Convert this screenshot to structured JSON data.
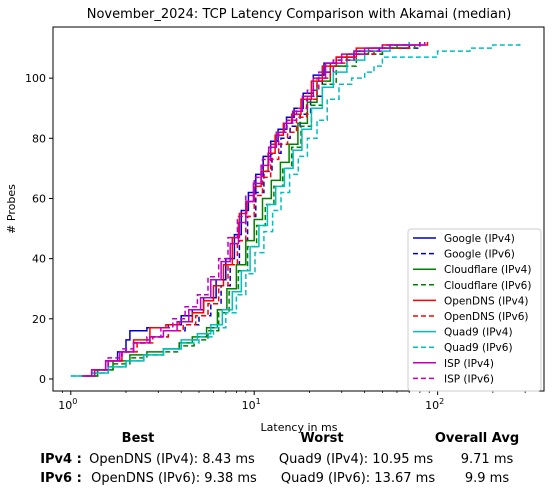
{
  "chart_data": {
    "type": "line",
    "title": "November_2024: TCP Latency Comparison with Akamai (median)",
    "xlabel": "Latency in ms",
    "ylabel": "# Probes",
    "xscale": "log",
    "xlim": [
      0.8,
      380
    ],
    "ylim": [
      -4,
      117
    ],
    "xticks": [
      {
        "value": 1,
        "label": "10^0"
      },
      {
        "value": 10,
        "label": "10^1"
      },
      {
        "value": 100,
        "label": "10^2"
      }
    ],
    "yticks": [
      0,
      20,
      40,
      60,
      80,
      100
    ],
    "grid": false,
    "legend_position": "bottom-right",
    "series": [
      {
        "name": "Google (IPv4)",
        "color": "#0000cc",
        "dash": "solid",
        "x": [
          1.15,
          1.3,
          1.55,
          1.8,
          2.0,
          2.1,
          2.6,
          3.4,
          4.0,
          4.6,
          5.3,
          6.2,
          7.0,
          7.8,
          8.5,
          9.3,
          10.2,
          11.2,
          12.3,
          13.5,
          15.0,
          16.5,
          18.5,
          21,
          24,
          28,
          35,
          48,
          70
        ],
        "y": [
          1,
          3,
          6,
          9,
          13,
          16,
          17,
          18,
          21,
          23,
          27,
          33,
          40,
          48,
          56,
          62,
          68,
          74,
          79,
          83,
          87,
          90,
          95,
          101,
          105,
          107,
          109,
          110,
          112
        ]
      },
      {
        "name": "Google (IPv6)",
        "color": "#0000cc",
        "dash": "dashed",
        "x": [
          1.2,
          1.35,
          1.6,
          1.9,
          2.2,
          2.7,
          3.4,
          4.2,
          5.0,
          5.8,
          6.6,
          7.4,
          8.3,
          9.2,
          10.2,
          11.3,
          12.5,
          14.0,
          15.7,
          17.8,
          20.3,
          23.5,
          27,
          35,
          50,
          80
        ],
        "y": [
          1,
          3,
          6,
          9,
          12,
          14,
          16,
          18,
          21,
          25,
          31,
          38,
          46,
          54,
          62,
          69,
          75,
          80,
          84,
          88,
          94,
          102,
          106,
          108,
          110,
          112
        ]
      },
      {
        "name": "Cloudflare (IPv4)",
        "color": "#008000",
        "dash": "solid",
        "x": [
          1.2,
          1.4,
          1.7,
          2.1,
          2.6,
          3.2,
          3.9,
          4.6,
          5.5,
          6.3,
          7.1,
          8.0,
          9.0,
          10.0,
          11.1,
          12.4,
          13.9,
          15.5,
          17.3,
          19.5,
          22,
          26,
          32,
          42,
          60
        ],
        "y": [
          1,
          3,
          6,
          8,
          9,
          10,
          12,
          14,
          17,
          23,
          30,
          38,
          46,
          53,
          60,
          66,
          72,
          78,
          85,
          92,
          99,
          104,
          108,
          110,
          111
        ]
      },
      {
        "name": "Cloudflare (IPv6)",
        "color": "#008000",
        "dash": "dashed",
        "x": [
          1.2,
          1.4,
          1.7,
          2.1,
          2.6,
          3.2,
          3.9,
          4.7,
          5.6,
          6.4,
          7.3,
          8.2,
          9.2,
          10.3,
          11.5,
          12.8,
          14.3,
          16.0,
          18.0,
          20.5,
          23.5,
          28,
          36,
          50,
          75
        ],
        "y": [
          1,
          3,
          5,
          7,
          8,
          9,
          11,
          13,
          16,
          22,
          29,
          36,
          44,
          51,
          58,
          64,
          70,
          77,
          84,
          91,
          98,
          104,
          108,
          110,
          112
        ]
      },
      {
        "name": "OpenDNS (IPv4)",
        "color": "#ff0000",
        "dash": "solid",
        "x": [
          1.2,
          1.35,
          1.6,
          1.9,
          2.2,
          2.7,
          3.3,
          3.9,
          4.6,
          5.3,
          6.0,
          6.8,
          7.6,
          8.3,
          9.1,
          10.0,
          10.9,
          11.9,
          13.0,
          14.4,
          16.0,
          18.0,
          20.5,
          23.5,
          28,
          36,
          50,
          88
        ],
        "y": [
          1,
          3,
          6,
          9,
          13,
          17,
          18,
          19,
          22,
          26,
          31,
          38,
          47,
          55,
          59,
          64,
          69,
          75,
          81,
          85,
          88,
          93,
          99,
          104,
          107,
          110,
          111,
          112
        ]
      },
      {
        "name": "OpenDNS (IPv6)",
        "color": "#ff0000",
        "dash": "dashed",
        "x": [
          1.2,
          1.35,
          1.6,
          1.9,
          2.3,
          2.8,
          3.4,
          4.1,
          4.8,
          5.6,
          6.4,
          7.2,
          8.1,
          9.0,
          10.0,
          11.1,
          12.3,
          13.6,
          15.2,
          17.0,
          19.3,
          22,
          26,
          32,
          45,
          70
        ],
        "y": [
          1,
          3,
          6,
          9,
          12,
          14,
          16,
          18,
          21,
          25,
          31,
          38,
          46,
          54,
          61,
          67,
          73,
          78,
          82,
          87,
          93,
          100,
          105,
          108,
          110,
          112
        ]
      },
      {
        "name": "Quad9 (IPv4)",
        "color": "#00bfbf",
        "dash": "solid",
        "x": [
          1.0,
          1.3,
          1.6,
          2.0,
          2.5,
          3.2,
          4.0,
          4.9,
          5.8,
          6.7,
          7.6,
          8.5,
          9.5,
          10.6,
          11.8,
          13.1,
          14.6,
          16.3,
          18.2,
          20.5,
          23.5,
          27,
          32,
          40,
          55,
          70
        ],
        "y": [
          1,
          2,
          4,
          6,
          8,
          10,
          13,
          15,
          18,
          23,
          29,
          36,
          44,
          51,
          58,
          64,
          70,
          76,
          83,
          90,
          97,
          102,
          106,
          109,
          111,
          112
        ]
      },
      {
        "name": "Quad9 (IPv6)",
        "color": "#00bfbf",
        "dash": "dashed",
        "x": [
          1.0,
          1.3,
          1.6,
          2.0,
          2.5,
          3.2,
          4.0,
          5.0,
          6.0,
          7.0,
          8.0,
          9.0,
          10.1,
          11.3,
          12.6,
          14.0,
          15.6,
          17.4,
          19.5,
          22,
          25,
          29,
          34,
          40,
          45,
          50,
          100,
          150,
          200,
          280
        ],
        "y": [
          1,
          2,
          4,
          6,
          8,
          10,
          12,
          14,
          17,
          22,
          28,
          35,
          42,
          49,
          56,
          62,
          68,
          74,
          80,
          86,
          93,
          98,
          100,
          102,
          104,
          107,
          109,
          110,
          111,
          112
        ]
      },
      {
        "name": "ISP (IPv4)",
        "color": "#bf00bf",
        "dash": "solid",
        "x": [
          1.15,
          1.3,
          1.55,
          1.85,
          2.2,
          2.7,
          3.2,
          3.8,
          4.4,
          5.1,
          5.8,
          6.6,
          7.4,
          8.2,
          9.0,
          9.9,
          10.9,
          12.0,
          13.2,
          14.6,
          16.2,
          18.3,
          21,
          24.5,
          30,
          40,
          55,
          85
        ],
        "y": [
          1,
          3,
          6,
          9,
          12,
          14,
          16,
          19,
          23,
          27,
          33,
          39,
          45,
          52,
          59,
          65,
          71,
          77,
          82,
          85,
          89,
          94,
          100,
          105,
          108,
          110,
          111,
          112
        ]
      },
      {
        "name": "ISP (IPv6)",
        "color": "#bf00bf",
        "dash": "dashed",
        "x": [
          1.2,
          1.35,
          1.6,
          1.9,
          2.2,
          2.6,
          3.1,
          3.6,
          4.2,
          4.9,
          5.6,
          6.4,
          7.2,
          8.1,
          9.0,
          10.0,
          11.1,
          12.3,
          13.6,
          15.1,
          17.0,
          19.5,
          22.5,
          27,
          35,
          50,
          80
        ],
        "y": [
          1,
          3,
          7,
          10,
          12,
          14,
          17,
          20,
          24,
          28,
          34,
          40,
          47,
          54,
          61,
          67,
          73,
          78,
          82,
          86,
          90,
          96,
          102,
          106,
          109,
          111,
          112
        ]
      }
    ]
  },
  "summary": {
    "headers": {
      "best": "Best",
      "worst": "Worst",
      "avg": "Overall Avg"
    },
    "rows": [
      {
        "label": "IPv4 :",
        "best": "OpenDNS (IPv4): 8.43 ms",
        "worst": "Quad9 (IPv4): 10.95 ms",
        "avg": "9.71 ms"
      },
      {
        "label": "IPv6 :",
        "best": "OpenDNS (IPv6): 9.38 ms",
        "worst": "Quad9 (IPv6): 13.67 ms",
        "avg": "9.9 ms"
      }
    ]
  }
}
